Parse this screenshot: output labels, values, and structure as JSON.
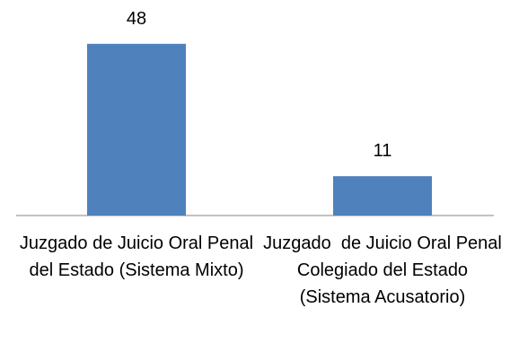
{
  "chart_data": {
    "type": "bar",
    "categories": [
      "Juzgado de Juicio Oral Penal del Estado (Sistema Mixto)",
      "Juzgado  de Juicio Oral Penal Colegiado del Estado (Sistema Acusatorio)"
    ],
    "values": [
      48,
      11
    ],
    "color": "#4f81bd",
    "ylim": [
      0,
      60
    ]
  }
}
